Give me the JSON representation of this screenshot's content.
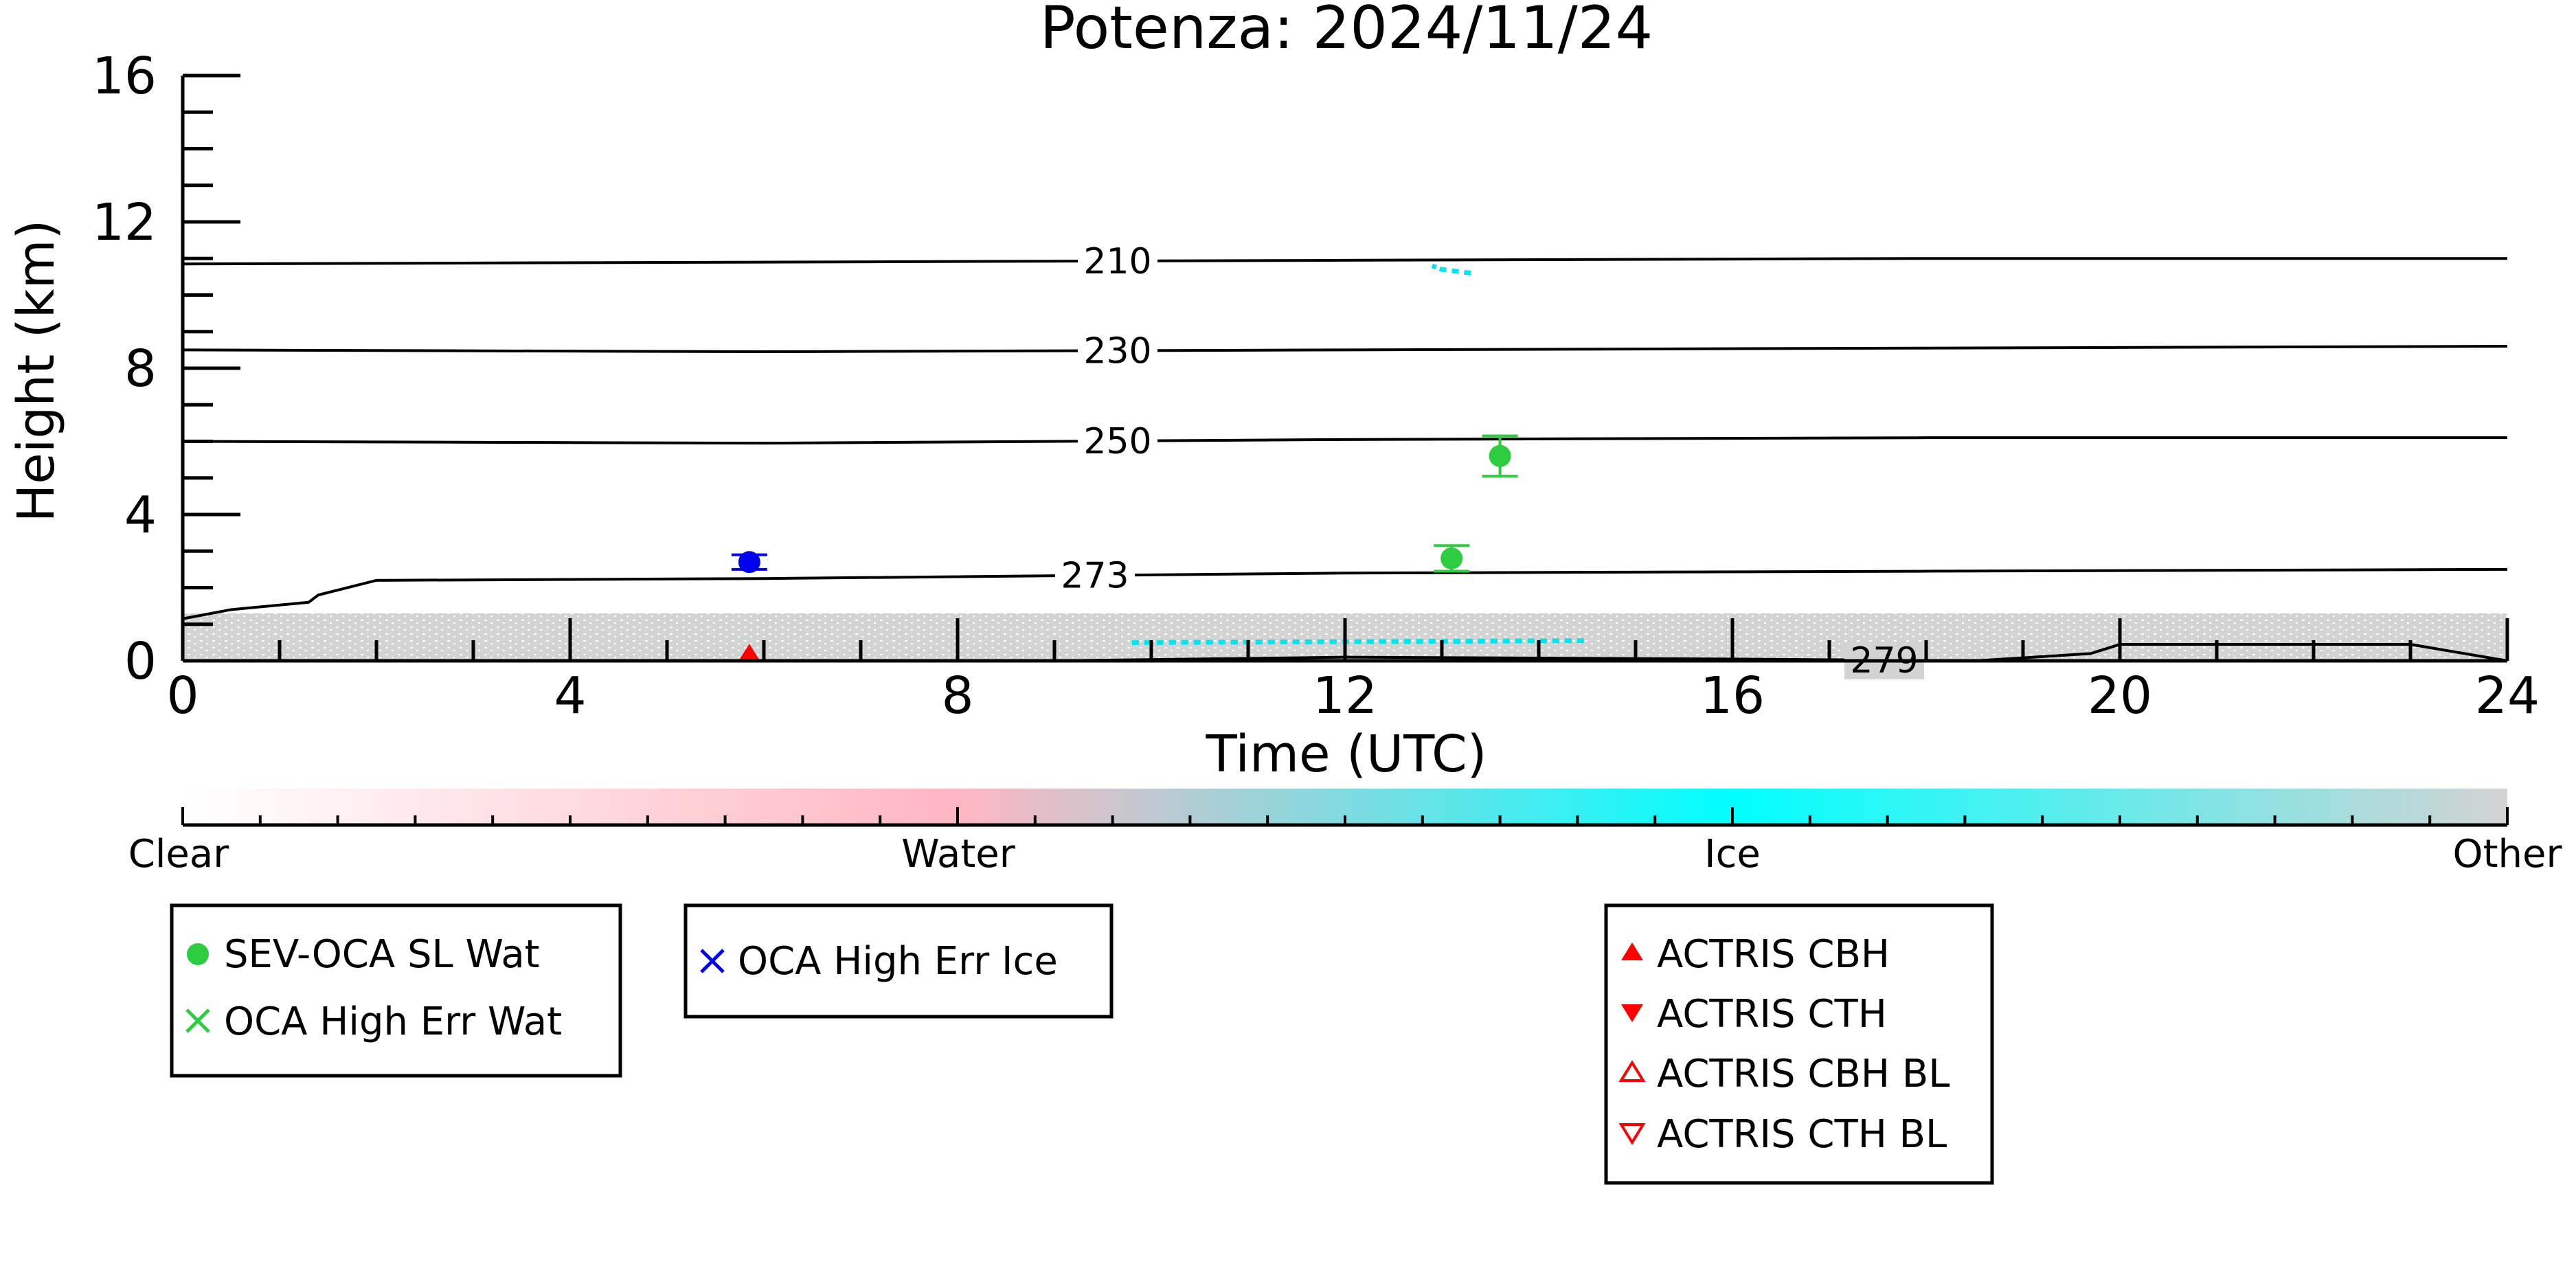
{
  "chart_data": {
    "type": "scatter",
    "title": "Potenza: 2024/11/24",
    "xlabel": "Time (UTC)",
    "ylabel": "Height (km)",
    "xlim": [
      0,
      24
    ],
    "ylim": [
      0,
      16
    ],
    "x_ticks": [
      "0",
      "4",
      "8",
      "12",
      "16",
      "20",
      "24"
    ],
    "y_ticks": [
      "0",
      "4",
      "8",
      "12",
      "16"
    ],
    "grid": false,
    "background_echo": {
      "class": "Other",
      "color": "#d3d3d3",
      "top_km": 1.3
    },
    "isotherms": [
      {
        "label": "210",
        "x": [
          0,
          6,
          12,
          18,
          24
        ],
        "y": [
          10.85,
          10.9,
          10.95,
          11.0,
          11.0
        ]
      },
      {
        "label": "230",
        "x": [
          0,
          6,
          12,
          18,
          24
        ],
        "y": [
          8.5,
          8.45,
          8.5,
          8.55,
          8.6
        ]
      },
      {
        "label": "250",
        "x": [
          0,
          6,
          12,
          18,
          24
        ],
        "y": [
          6.0,
          5.95,
          6.05,
          6.1,
          6.1
        ]
      },
      {
        "label": "273",
        "x": [
          0,
          0.5,
          1.3,
          1.4,
          2,
          6,
          12,
          18,
          24
        ],
        "y": [
          1.15,
          1.4,
          1.6,
          1.8,
          2.2,
          2.25,
          2.4,
          2.45,
          2.5
        ]
      },
      {
        "label": "279",
        "x": [
          9,
          12,
          16,
          18.5,
          19.7,
          20.0,
          23.0,
          24
        ],
        "y": [
          0.0,
          0.1,
          0.05,
          0.0,
          0.2,
          0.45,
          0.45,
          0.0
        ]
      }
    ],
    "ice_patches": [
      {
        "x": [
          13.3,
          13.0,
          12.9,
          13.0
        ],
        "y": [
          10.6,
          10.7,
          10.8,
          10.7
        ]
      },
      {
        "x": [
          9.8,
          14.5
        ],
        "y": [
          0.5,
          0.55
        ]
      }
    ],
    "series": [
      {
        "name": "SEV-OCA SL Wat",
        "color": "#2ecc40",
        "points": [
          {
            "x": 13.6,
            "y": 5.6,
            "err": 0.55
          },
          {
            "x": 13.1,
            "y": 2.8,
            "err": 0.35
          }
        ]
      },
      {
        "name": "OCA High Err Ice",
        "color": "#0000ee",
        "points": [
          {
            "x": 5.85,
            "y": 2.7,
            "err": 0.2
          }
        ]
      },
      {
        "name": "ACTRIS CBH",
        "color": "#ff0000",
        "points": [
          {
            "x": 5.85,
            "y": 0.05
          }
        ]
      }
    ],
    "colorbar": {
      "labels": [
        "Clear",
        "Water",
        "Ice",
        "Other"
      ],
      "stops": [
        "#ffffff",
        "#ffb6c1",
        "#00ffff",
        "#d3d3d3"
      ]
    },
    "legends": [
      {
        "entries": [
          {
            "label": "SEV-OCA SL Wat",
            "marker": "filled-circle",
            "color": "#2ecc40"
          },
          {
            "label": "OCA High Err Wat",
            "marker": "x",
            "color": "#2ecc40"
          }
        ]
      },
      {
        "entries": [
          {
            "label": "OCA High Err Ice",
            "marker": "x",
            "color": "#0000ee"
          }
        ]
      },
      {
        "entries": [
          {
            "label": "ACTRIS CBH",
            "marker": "triangle-up-filled",
            "color": "#ff0000"
          },
          {
            "label": "ACTRIS CTH",
            "marker": "triangle-down-filled",
            "color": "#ff0000"
          },
          {
            "label": "ACTRIS CBH BL",
            "marker": "triangle-up-open",
            "color": "#ff0000"
          },
          {
            "label": "ACTRIS CTH BL",
            "marker": "triangle-down-open",
            "color": "#ff0000"
          }
        ]
      }
    ]
  }
}
